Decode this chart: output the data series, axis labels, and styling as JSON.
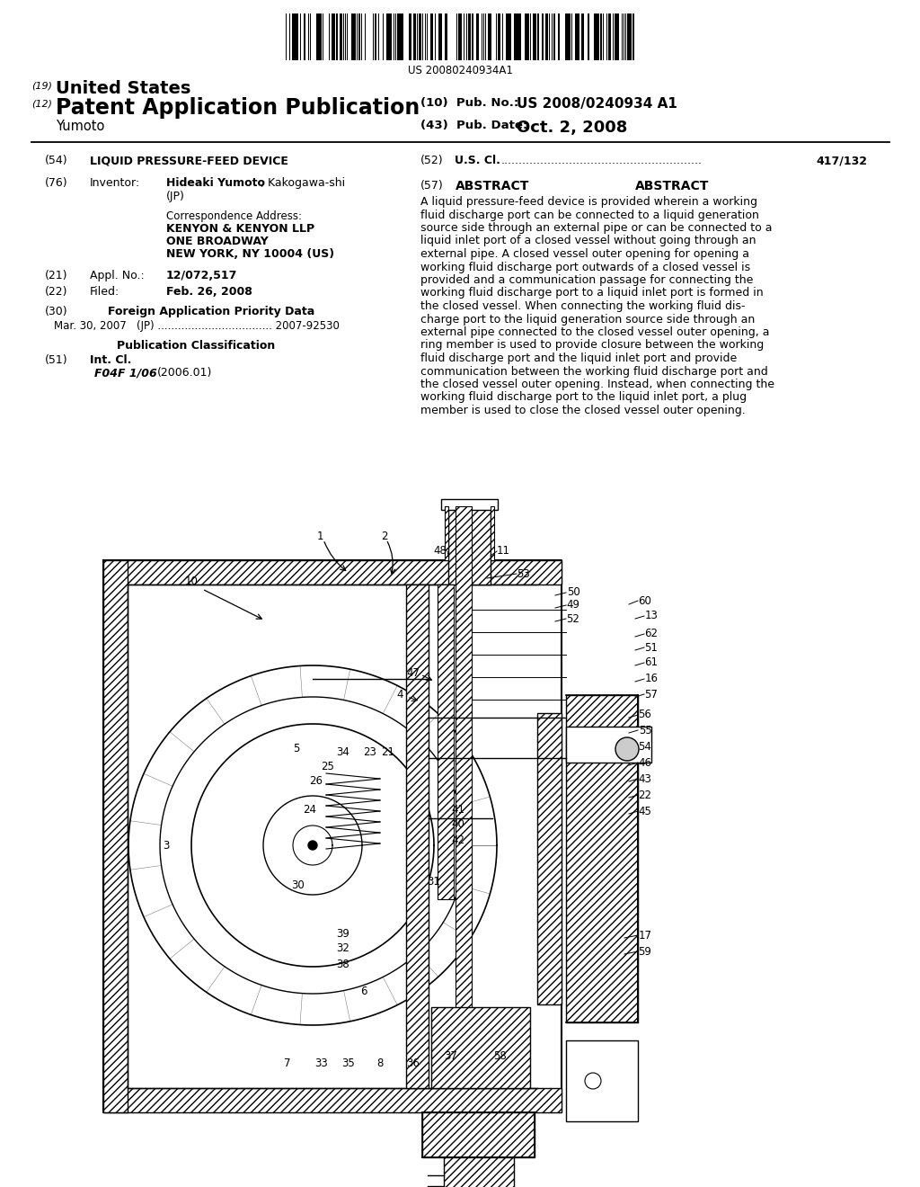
{
  "bg_color": "#ffffff",
  "barcode_text": "US 20080240934A1",
  "title_19": "(19) United States",
  "title_12_prefix": "(12)",
  "title_12_main": "Patent Application Publication",
  "pub_no_label": "(10)  Pub. No.:",
  "pub_no_value": "US 2008/0240934 A1",
  "pub_date_label": "(43)  Pub. Date:",
  "pub_date_value": "Oct. 2, 2008",
  "inventor_name": "Yumoto",
  "field54_num": "(54)",
  "field54_text": "LIQUID PRESSURE-FEED DEVICE",
  "field52_num": "(52)",
  "field52_text": "U.S. Cl.",
  "field52_dots": "........................................................",
  "field52_val": "417/132",
  "field76_num": "(76)",
  "field76_lab": "Inventor:",
  "field76_name": "Hideaki Yumoto",
  "field76_loc": ", Kakogawa-shi",
  "field76_country": "(JP)",
  "corr_line0": "Correspondence Address:",
  "corr_line1": "KENYON & KENYON LLP",
  "corr_line2": "ONE BROADWAY",
  "corr_line3": "NEW YORK, NY 10004 (US)",
  "field21_num": "(21)",
  "field21_lab": "Appl. No.:",
  "field21_val": "12/072,517",
  "field22_num": "(22)",
  "field22_lab": "Filed:",
  "field22_val": "Feb. 26, 2008",
  "field30_num": "(30)",
  "field30_title": "Foreign Application Priority Data",
  "field30_entry": "Mar. 30, 2007   (JP) .................................. 2007-92530",
  "pub_class_title": "Publication Classification",
  "field51_num": "(51)",
  "field51_lab": "Int. Cl.",
  "field51_val": "F04F 1/06",
  "field51_year": "(2006.01)",
  "field57_num": "(57)",
  "field57_title": "ABSTRACT",
  "abstract_lines": [
    "A liquid pressure-feed device is provided wherein a working",
    "fluid discharge port can be connected to a liquid generation",
    "source side through an external pipe or can be connected to a",
    "liquid inlet port of a closed vessel without going through an",
    "external pipe. A closed vessel outer opening for opening a",
    "working fluid discharge port outwards of a closed vessel is",
    "provided and a communication passage for connecting the",
    "working fluid discharge port to a liquid inlet port is formed in",
    "the closed vessel. When connecting the working fluid dis-",
    "charge port to the liquid generation source side through an",
    "external pipe connected to the closed vessel outer opening, a",
    "ring member is used to provide closure between the working",
    "fluid discharge port and the liquid inlet port and provide",
    "communication between the working fluid discharge port and",
    "the closed vessel outer opening. Instead, when connecting the",
    "working fluid discharge port to the liquid inlet port, a plug",
    "member is used to close the closed vessel outer opening."
  ]
}
